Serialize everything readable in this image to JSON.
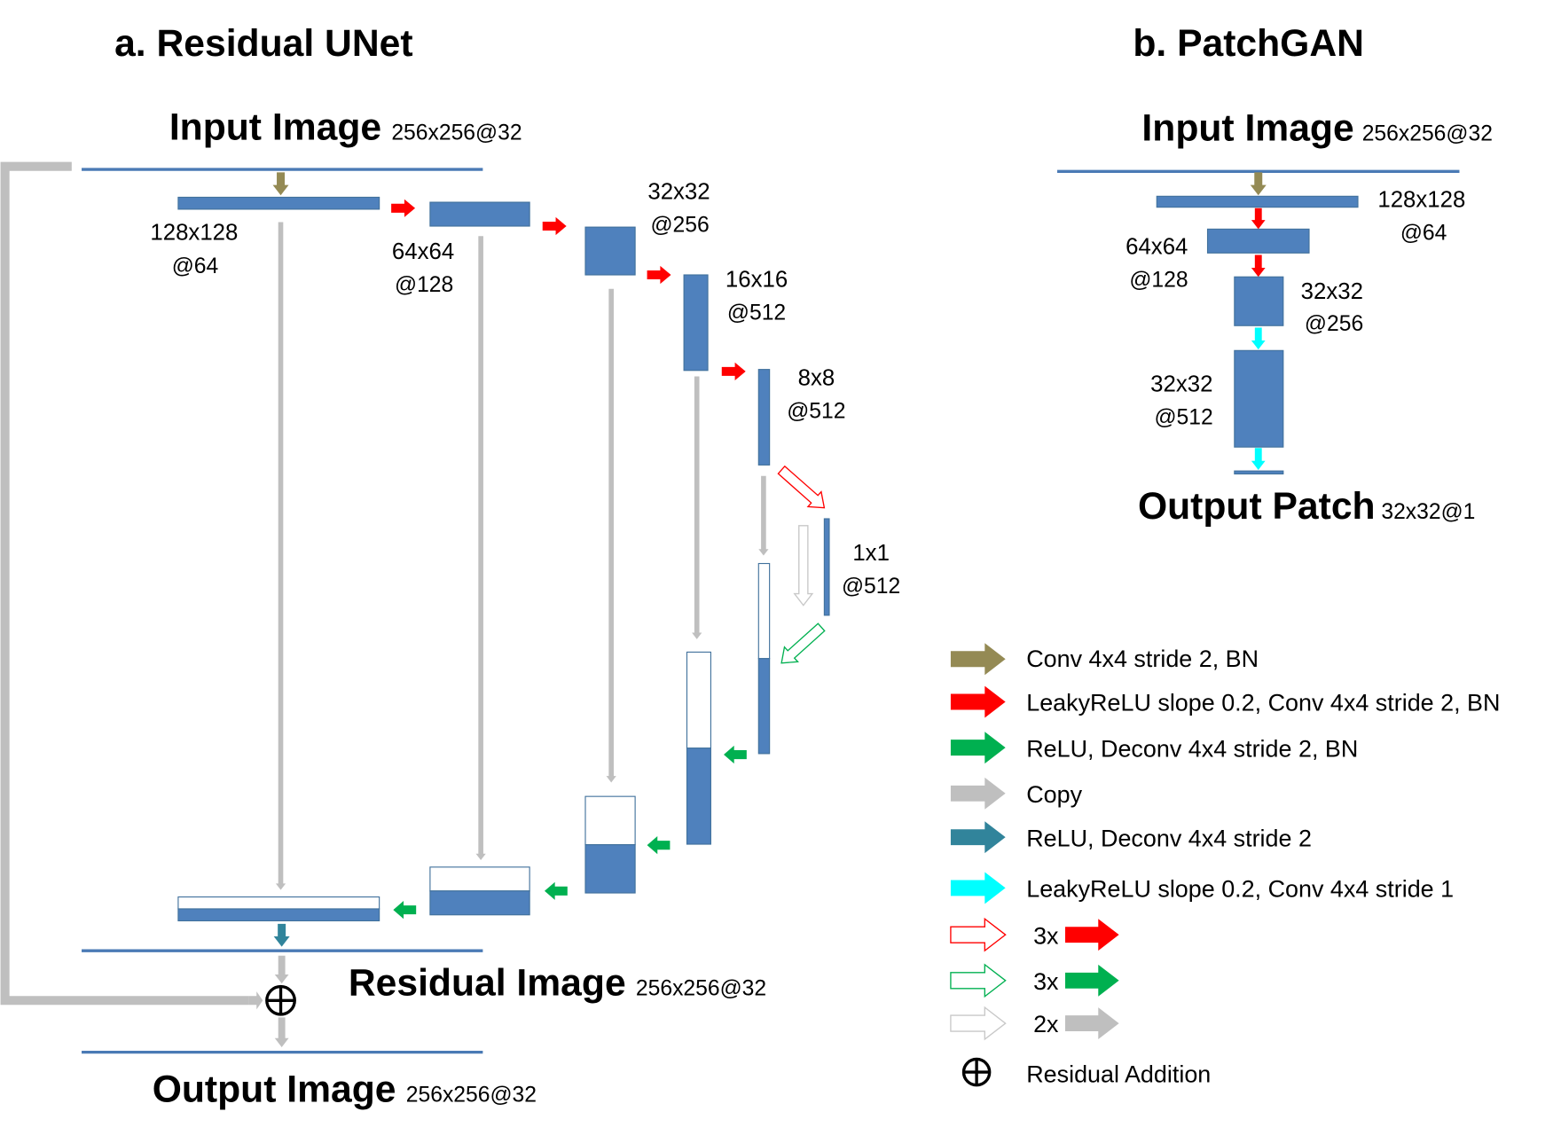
{
  "unet": {
    "title": "a. Residual UNet",
    "input_label": "Input Image",
    "input_dims": "256x256@32",
    "residual_label": "Residual Image",
    "residual_dims": "256x256@32",
    "output_label": "Output Image",
    "output_dims": "256x256@32",
    "encoder": [
      {
        "size": "128x128",
        "channels": "@64"
      },
      {
        "size": "64x64",
        "channels": "@128"
      },
      {
        "size": "32x32",
        "channels": "@256"
      },
      {
        "size": "16x16",
        "channels": "@512"
      },
      {
        "size": "8x8",
        "channels": "@512"
      },
      {
        "size": "1x1",
        "channels": "@512"
      }
    ]
  },
  "patchgan": {
    "title": "b. PatchGAN",
    "input_label": "Input Image",
    "input_dims": "256x256@32",
    "output_label": "Output Patch",
    "output_dims": "32x32@1",
    "layers": [
      {
        "size": "128x128",
        "channels": "@64"
      },
      {
        "size": "64x64",
        "channels": "@128"
      },
      {
        "size": "32x32",
        "channels": "@256"
      },
      {
        "size": "32x32",
        "channels": "@512"
      }
    ]
  },
  "legend": [
    {
      "label": "Conv 4x4 stride 2, BN",
      "color": "#948a54"
    },
    {
      "label": "LeakyReLU slope 0.2, Conv 4x4 stride 2, BN",
      "color": "#ff0000"
    },
    {
      "label": "ReLU, Deconv 4x4 stride 2, BN",
      "color": "#00b050"
    },
    {
      "label": "Copy",
      "color": "#bfbfbf"
    },
    {
      "label": "ReLU, Deconv 4x4 stride 2",
      "color": "#31849b"
    },
    {
      "label": "LeakyReLU slope 0.2, Conv 4x4 stride 1",
      "color": "#00ffff"
    },
    {
      "label": "3x",
      "color": "#ff0000"
    },
    {
      "label": "3x",
      "color": "#00b050"
    },
    {
      "label": "2x",
      "color": "#bfbfbf"
    },
    {
      "label": "Residual Addition",
      "color": "#000000"
    }
  ],
  "colors": {
    "block": "#4f81bd",
    "line": "#4a7ab5"
  }
}
